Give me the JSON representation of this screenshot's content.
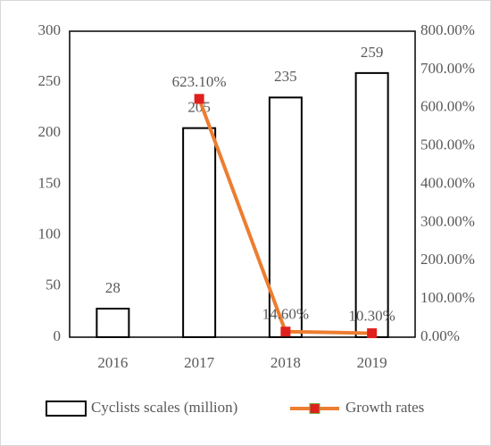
{
  "chart_data": {
    "type": "bar",
    "categories": [
      "2016",
      "2017",
      "2018",
      "2019"
    ],
    "series": [
      {
        "name": "Cyclists scales (million)",
        "type": "bar",
        "color": "#ffffff",
        "stroke": "#000000",
        "values": [
          28,
          205,
          235,
          259
        ]
      },
      {
        "name": "Growth rates",
        "type": "line",
        "axis": "y2",
        "color": "#ed7d31",
        "marker_color": "#e0201c",
        "values": [
          null,
          623.1,
          14.6,
          10.3
        ],
        "value_labels": [
          null,
          "623.10%",
          "14.60%",
          "10.30%"
        ]
      }
    ],
    "ylim": [
      0,
      300
    ],
    "yticks": [
      0,
      50,
      100,
      150,
      200,
      250,
      300
    ],
    "y2lim": [
      0,
      800
    ],
    "y2ticks": [
      {
        "value": 0,
        "label": "0.00%"
      },
      {
        "value": 100,
        "label": "100.00%"
      },
      {
        "value": 200,
        "label": "200.00%"
      },
      {
        "value": 300,
        "label": "300.00%"
      },
      {
        "value": 400,
        "label": "400.00%"
      },
      {
        "value": 500,
        "label": "500.00%"
      },
      {
        "value": 600,
        "label": "600.00%"
      },
      {
        "value": 700,
        "label": "700.00%"
      },
      {
        "value": 800,
        "label": "800.00%"
      }
    ],
    "grid": false,
    "legend": "bottom"
  }
}
